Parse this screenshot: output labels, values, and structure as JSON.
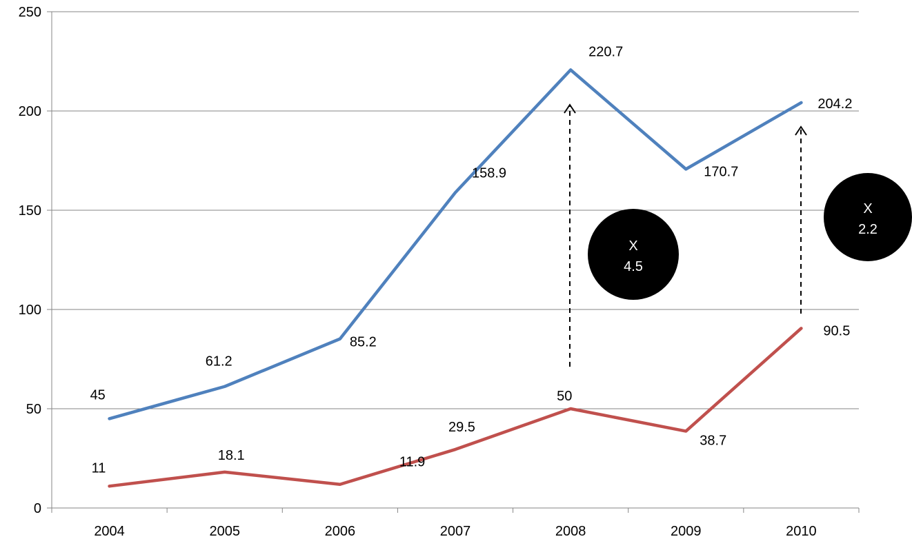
{
  "chart_data": {
    "type": "line",
    "title": "",
    "xlabel": "",
    "ylabel": "",
    "categories": [
      "2004",
      "2005",
      "2006",
      "2007",
      "2008",
      "2009",
      "2010"
    ],
    "ylim": [
      0,
      250
    ],
    "yticks": [
      0,
      50,
      100,
      150,
      200,
      250
    ],
    "grid": true,
    "legend": "none",
    "series": [
      {
        "color": "#4F81BD",
        "values": [
          45,
          61.2,
          85.2,
          158.9,
          220.7,
          170.7,
          204.2
        ],
        "labels": [
          "45",
          "61.2",
          "85.2",
          "158.9",
          "220.7",
          "170.7",
          "204.2"
        ]
      },
      {
        "color": "#C0504D",
        "values": [
          11,
          18.1,
          11.9,
          29.5,
          50,
          38.7,
          90.5
        ],
        "labels": [
          "11",
          "18.1",
          "11.9",
          "29.5",
          "50",
          "38.7",
          "90.5"
        ]
      }
    ],
    "annotations": [
      {
        "category": "2008",
        "line1": "X",
        "line2": "4.5"
      },
      {
        "category": "2010",
        "line1": "X",
        "line2": "2.2"
      }
    ]
  }
}
